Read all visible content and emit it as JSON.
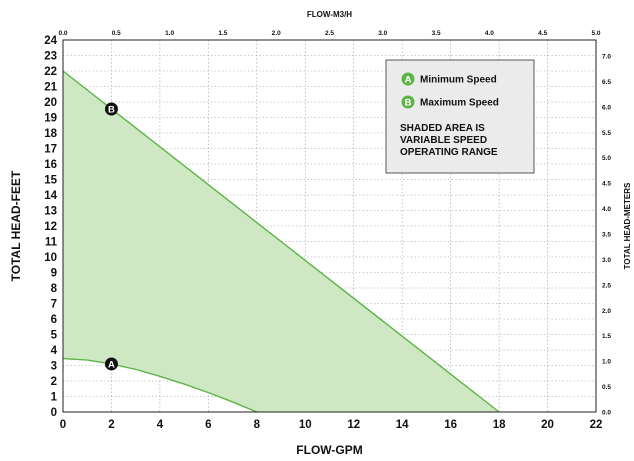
{
  "chart_data": {
    "type": "area",
    "xlabel": "FLOW-GPM",
    "ylabel": "TOTAL HEAD-FEET",
    "x2label": "FLOW-M3/H",
    "y2label": "TOTAL HEAD-METERS",
    "xlim": [
      0,
      22
    ],
    "ylim": [
      0,
      24
    ],
    "x_ticks": [
      0,
      2,
      4,
      6,
      8,
      10,
      12,
      14,
      16,
      18,
      20,
      22
    ],
    "y_ticks": [
      0,
      1,
      2,
      3,
      4,
      5,
      6,
      7,
      8,
      9,
      10,
      11,
      12,
      13,
      14,
      15,
      16,
      17,
      18,
      19,
      20,
      21,
      22,
      23,
      24
    ],
    "x2lim": [
      0.0,
      5.0
    ],
    "x2_ticks": [
      "0.0",
      "0.5",
      "1.0",
      "1.5",
      "2.0",
      "2.5",
      "3.0",
      "3.5",
      "4.0",
      "4.5",
      "5.0"
    ],
    "y2lim": [
      0.0,
      7.315
    ],
    "y2_ticks": [
      "0.0",
      "0.5",
      "1.0",
      "1.5",
      "2.0",
      "2.5",
      "3.0",
      "3.5",
      "4.0",
      "4.5",
      "5.0",
      "5.5",
      "6.0",
      "6.5",
      "7.0"
    ],
    "grid": true,
    "series": [
      {
        "name": "Minimum Speed",
        "marker": "A",
        "x": [
          0,
          1,
          2,
          3,
          4,
          5,
          6,
          7,
          8
        ],
        "y": [
          3.45,
          3.35,
          3.1,
          2.75,
          2.3,
          1.8,
          1.25,
          0.65,
          0.0
        ],
        "label_point": [
          2,
          3.1
        ]
      },
      {
        "name": "Maximum Speed",
        "marker": "B",
        "x": [
          0,
          18
        ],
        "y": [
          22,
          0
        ],
        "label_point": [
          2,
          19.55
        ]
      }
    ],
    "shaded_region": "between Minimum Speed and Maximum Speed curves",
    "fill_color": "#cfe8c4",
    "line_color": "#5cb346",
    "legend": {
      "placement": "top-right",
      "items": [
        {
          "marker": "A",
          "label": "Minimum Speed"
        },
        {
          "marker": "B",
          "label": "Maximum Speed"
        }
      ],
      "note_lines": [
        "SHADED AREA IS",
        "VARIABLE SPEED",
        "OPERATING RANGE"
      ],
      "badge_color": "#5cb346",
      "box_color": "#ebebeb"
    },
    "point_marker_color": "#111111"
  }
}
